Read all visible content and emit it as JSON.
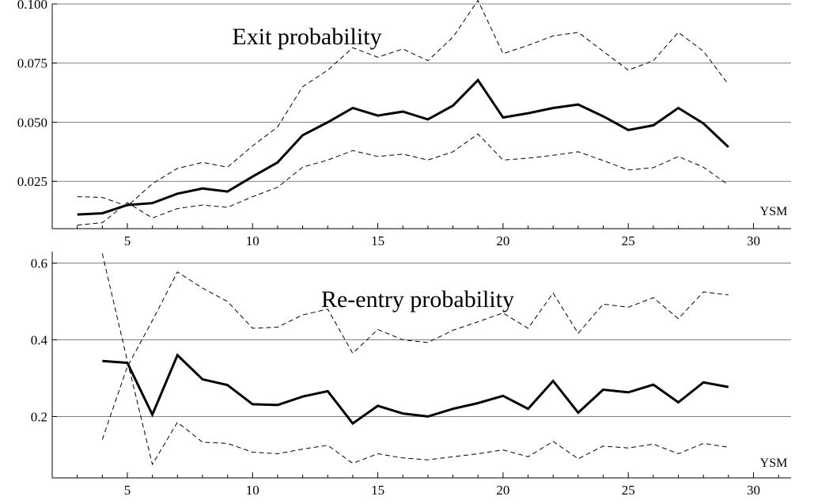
{
  "chart_data": [
    {
      "type": "line",
      "title": "Exit probability",
      "xlabel": "YSM",
      "ylabel": "",
      "xlim": [
        2,
        31.5
      ],
      "ylim": [
        0.005,
        0.1
      ],
      "xticks": [
        "5",
        "10",
        "15",
        "20",
        "25",
        "30"
      ],
      "yticks": [
        "0.025",
        "0.050",
        "0.075",
        "0.100"
      ],
      "grid": "horizontal",
      "x": [
        3,
        4,
        5,
        6,
        7,
        8,
        9,
        10,
        11,
        12,
        13,
        14,
        15,
        16,
        17,
        18,
        19,
        20,
        21,
        22,
        23,
        24,
        25,
        26,
        27,
        28,
        29
      ],
      "series": [
        {
          "style": "solid",
          "values": [
            0.011,
            0.0115,
            0.015,
            0.0158,
            0.0198,
            0.022,
            0.0207,
            0.027,
            0.033,
            0.0445,
            0.05,
            0.056,
            0.0528,
            0.0545,
            0.0512,
            0.057,
            0.0678,
            0.052,
            0.0538,
            0.056,
            0.0575,
            0.0525,
            0.0467,
            0.0487,
            0.056,
            0.0495,
            0.0395
          ]
        },
        {
          "style": "dashed",
          "values": [
            0.0185,
            0.0182,
            0.0145,
            0.024,
            0.0305,
            0.033,
            0.031,
            0.04,
            0.048,
            0.065,
            0.072,
            0.0815,
            0.0775,
            0.081,
            0.076,
            0.086,
            0.1015,
            0.079,
            0.0825,
            0.0865,
            0.088,
            0.08,
            0.072,
            0.076,
            0.088,
            0.08,
            0.066
          ]
        },
        {
          "style": "dashed",
          "values": [
            0.0065,
            0.0075,
            0.016,
            0.0095,
            0.0135,
            0.015,
            0.014,
            0.0185,
            0.0225,
            0.031,
            0.034,
            0.038,
            0.0355,
            0.0365,
            0.034,
            0.0375,
            0.045,
            0.034,
            0.0348,
            0.036,
            0.0375,
            0.0338,
            0.0298,
            0.0308,
            0.0355,
            0.031,
            0.0235
          ]
        }
      ]
    },
    {
      "type": "line",
      "title": "Re-entry probability",
      "xlabel": "YSM",
      "ylabel": "",
      "xlim": [
        2,
        31.5
      ],
      "ylim": [
        0.04,
        0.63
      ],
      "xticks": [
        "5",
        "10",
        "15",
        "20",
        "25",
        "30"
      ],
      "yticks": [
        "0.2",
        "0.4",
        "0.6"
      ],
      "grid": "horizontal",
      "x": [
        4,
        5,
        6,
        7,
        8,
        9,
        10,
        11,
        12,
        13,
        14,
        15,
        16,
        17,
        18,
        19,
        20,
        21,
        22,
        23,
        24,
        25,
        26,
        27,
        28,
        29
      ],
      "series": [
        {
          "style": "solid",
          "values": [
            0.345,
            0.34,
            0.205,
            0.36,
            0.297,
            0.282,
            0.232,
            0.23,
            0.252,
            0.266,
            0.182,
            0.228,
            0.208,
            0.2,
            0.22,
            0.235,
            0.254,
            0.22,
            0.293,
            0.21,
            0.27,
            0.263,
            0.283,
            0.237,
            0.289,
            0.277
          ]
        },
        {
          "style": "dashed",
          "values": [
            0.14,
            0.33,
            0.45,
            0.577,
            0.535,
            0.5,
            0.43,
            0.433,
            0.465,
            0.48,
            0.365,
            0.427,
            0.4,
            0.393,
            0.425,
            0.447,
            0.47,
            0.43,
            0.522,
            0.417,
            0.493,
            0.485,
            0.51,
            0.455,
            0.525,
            0.517
          ]
        },
        {
          "style": "dashed",
          "values": [
            0.625,
            0.345,
            0.075,
            0.185,
            0.133,
            0.13,
            0.107,
            0.103,
            0.115,
            0.125,
            0.078,
            0.103,
            0.092,
            0.087,
            0.095,
            0.103,
            0.113,
            0.095,
            0.135,
            0.09,
            0.123,
            0.118,
            0.128,
            0.103,
            0.13,
            0.12
          ]
        }
      ]
    }
  ]
}
